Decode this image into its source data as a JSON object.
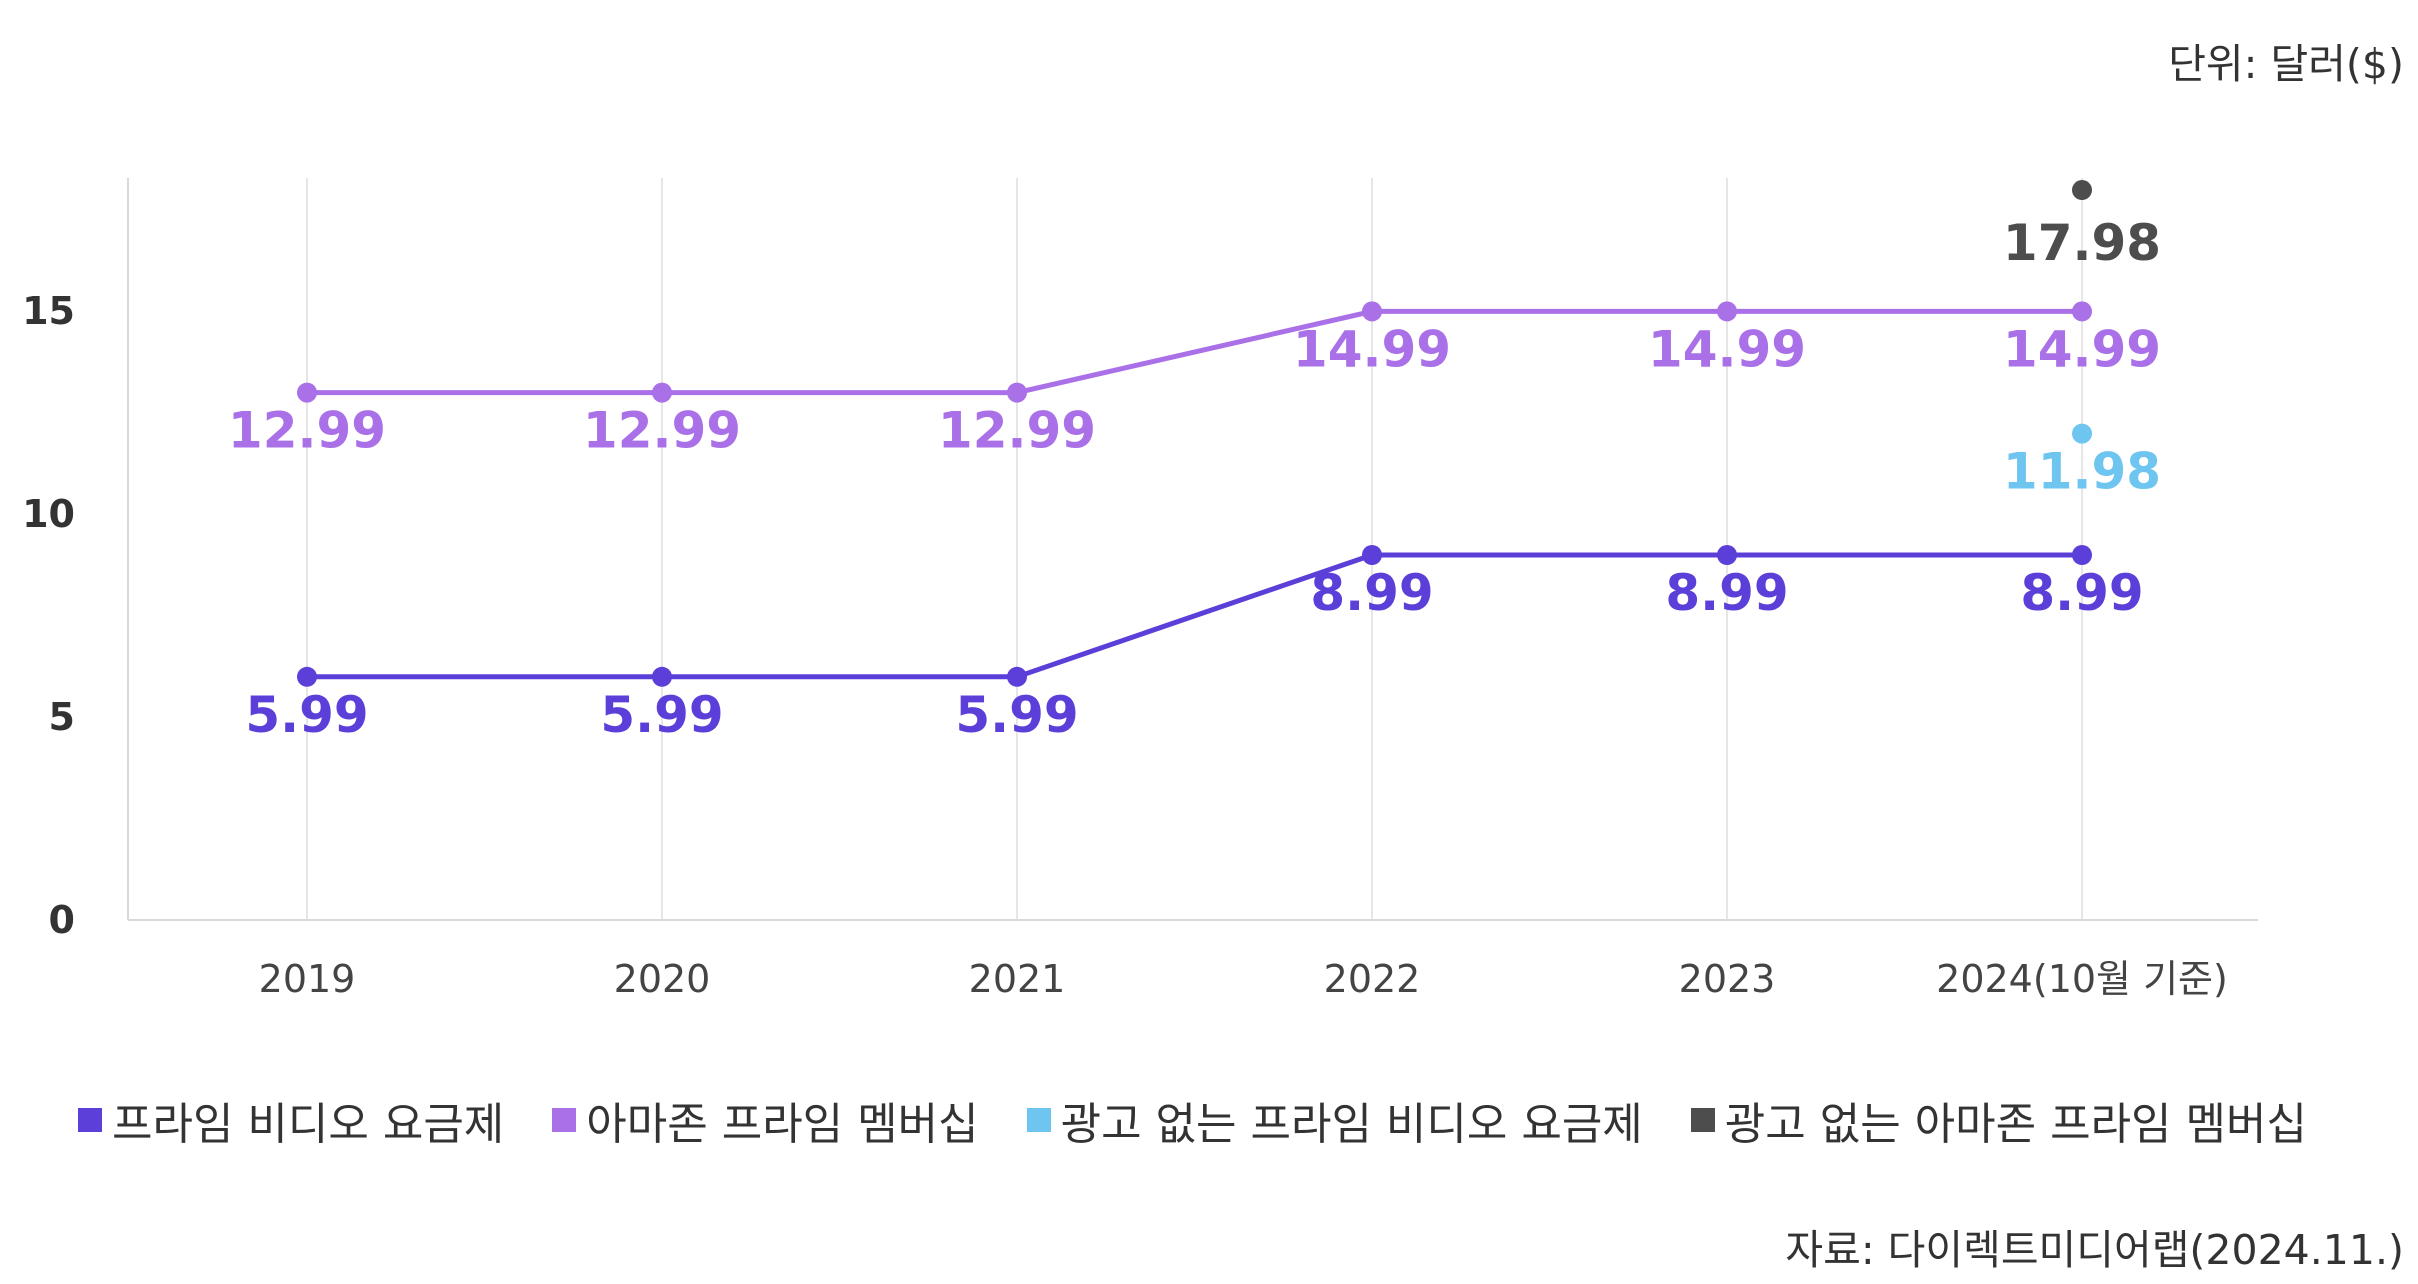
{
  "unit_label": "단위: 달러($)",
  "source_label": "자료: 다이렉트미디어랩(2024.11.)",
  "chart_data": {
    "type": "line",
    "x": [
      "2019",
      "2020",
      "2021",
      "2022",
      "2023",
      "2024(10월 기준)"
    ],
    "ylim": [
      0,
      18
    ],
    "yticks": [
      "0",
      "5",
      "10",
      "15"
    ],
    "grid": "vertical",
    "legend_position": "bottom",
    "series": [
      {
        "name": "프라임 비디오 요금제",
        "color": "#5b3fd8",
        "values": [
          5.99,
          5.99,
          5.99,
          8.99,
          8.99,
          8.99
        ],
        "labels": [
          "5.99",
          "5.99",
          "5.99",
          "8.99",
          "8.99",
          "8.99"
        ]
      },
      {
        "name": "아마존 프라임 멤버십",
        "color": "#a970e8",
        "values": [
          12.99,
          12.99,
          12.99,
          14.99,
          14.99,
          14.99
        ],
        "labels": [
          "12.99",
          "12.99",
          "12.99",
          "14.99",
          "14.99",
          "14.99"
        ]
      },
      {
        "name": "광고 없는 프라임 비디오 요금제",
        "color": "#6ec6f0",
        "values": [
          null,
          null,
          null,
          null,
          null,
          11.98
        ],
        "labels": [
          null,
          null,
          null,
          null,
          null,
          "11.98"
        ]
      },
      {
        "name": "광고 없는 아마존 프라임 멤버십",
        "color": "#4d4d4d",
        "values": [
          null,
          null,
          null,
          null,
          null,
          17.98
        ],
        "labels": [
          null,
          null,
          null,
          null,
          null,
          "17.98"
        ]
      }
    ]
  }
}
